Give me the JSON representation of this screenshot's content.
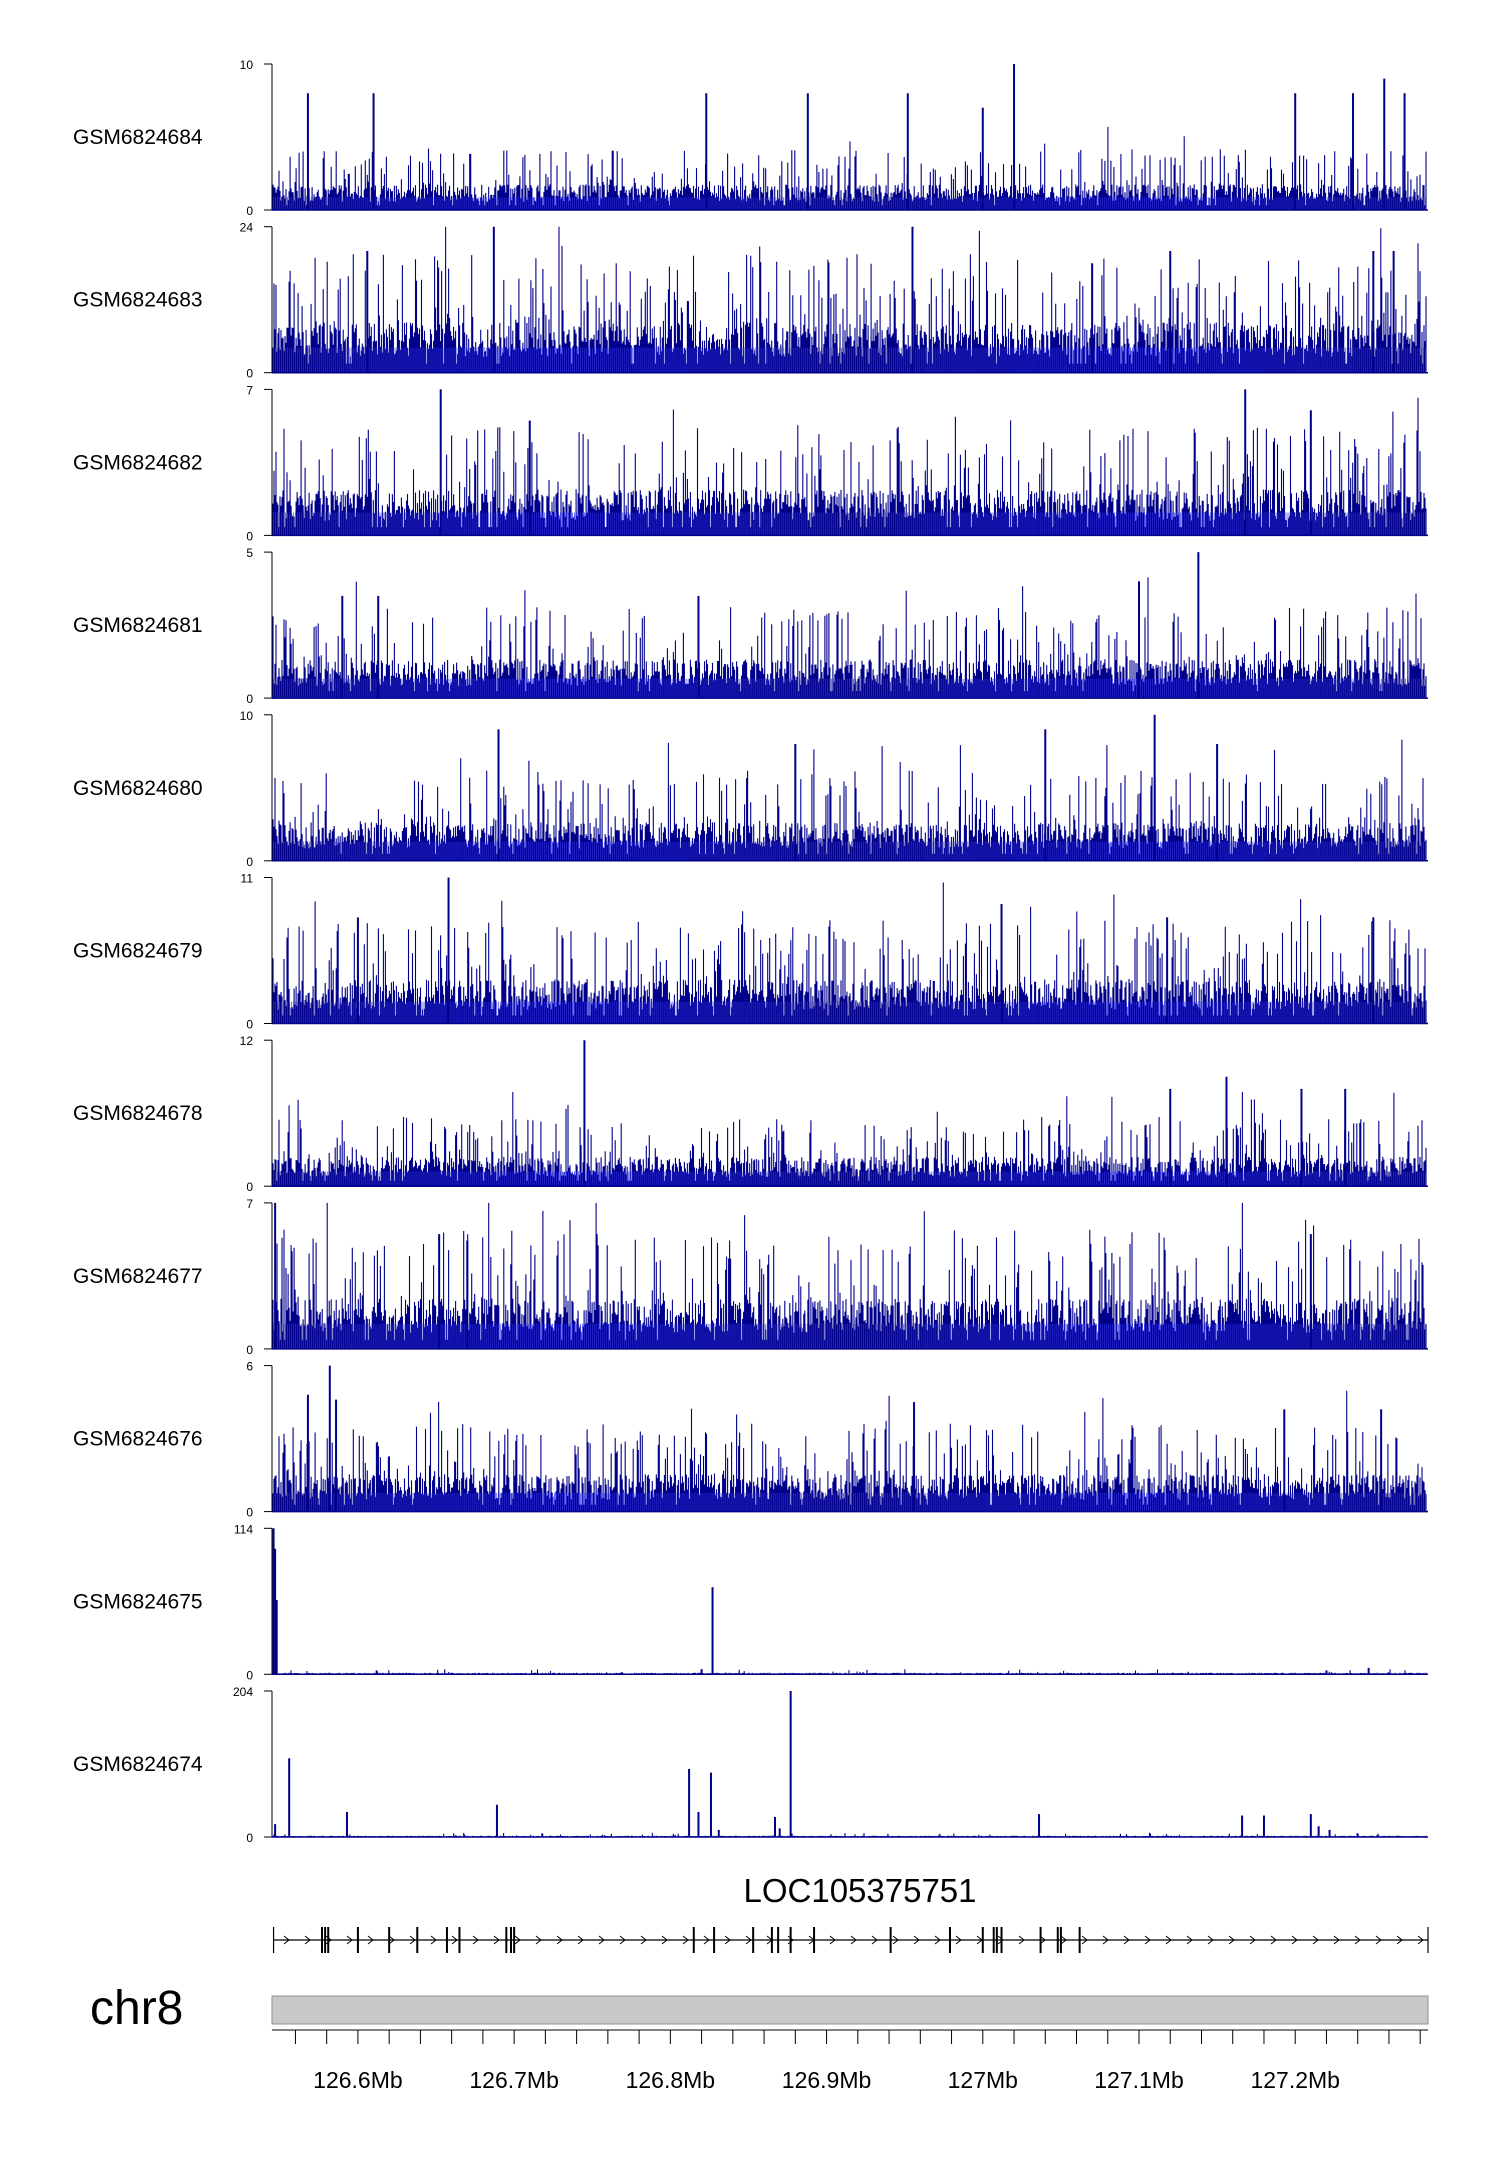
{
  "figure": {
    "tracks": [
      {
        "name": "GSM6824684",
        "ymax": "10",
        "ymin": "0"
      },
      {
        "name": "GSM6824683",
        "ymax": "24",
        "ymin": "0"
      },
      {
        "name": "GSM6824682",
        "ymax": "7",
        "ymin": "0"
      },
      {
        "name": "GSM6824681",
        "ymax": "5",
        "ymin": "0"
      },
      {
        "name": "GSM6824680",
        "ymax": "10",
        "ymin": "0"
      },
      {
        "name": "GSM6824679",
        "ymax": "11",
        "ymin": "0"
      },
      {
        "name": "GSM6824678",
        "ymax": "12",
        "ymin": "0"
      },
      {
        "name": "GSM6824677",
        "ymax": "7",
        "ymin": "0"
      },
      {
        "name": "GSM6824676",
        "ymax": "6",
        "ymin": "0"
      },
      {
        "name": "GSM6824675",
        "ymax": "114",
        "ymin": "0"
      },
      {
        "name": "GSM6824674",
        "ymax": "204",
        "ymin": "0"
      }
    ],
    "gene_label": "LOC105375751",
    "chromosome_label": "chr8",
    "axis_ticks": [
      "126.6Mb",
      "126.7Mb",
      "126.8Mb",
      "126.9Mb",
      "127Mb",
      "127.1Mb",
      "127.2Mb"
    ]
  },
  "chart_data": {
    "type": "area",
    "title": "",
    "x_unit": "Mb",
    "xlim": [
      126.545,
      127.285
    ],
    "colors": {
      "signal": "#00008B",
      "signal_light": "#3030E0",
      "gene": "#000000",
      "ideogram": "#C8C8C8",
      "ideogram_border": "#909090"
    },
    "series": [
      {
        "name": "GSM6824684",
        "ylim": [
          0,
          10
        ],
        "profile": "noise",
        "baseline": 1.6,
        "peaks": [
          {
            "x": 126.568,
            "y": 8
          },
          {
            "x": 126.61,
            "y": 8
          },
          {
            "x": 126.823,
            "y": 8
          },
          {
            "x": 126.888,
            "y": 8
          },
          {
            "x": 126.952,
            "y": 8
          },
          {
            "x": 127.0,
            "y": 7
          },
          {
            "x": 127.02,
            "y": 10
          },
          {
            "x": 127.2,
            "y": 8
          },
          {
            "x": 127.237,
            "y": 8
          },
          {
            "x": 127.257,
            "y": 9
          },
          {
            "x": 127.27,
            "y": 8
          }
        ]
      },
      {
        "name": "GSM6824683",
        "ylim": [
          0,
          24
        ],
        "profile": "noise",
        "baseline": 7.5,
        "peaks": [
          {
            "x": 126.606,
            "y": 20
          },
          {
            "x": 126.687,
            "y": 24
          },
          {
            "x": 126.955,
            "y": 24
          },
          {
            "x": 127.07,
            "y": 18
          },
          {
            "x": 127.12,
            "y": 20
          },
          {
            "x": 127.25,
            "y": 20
          },
          {
            "x": 127.263,
            "y": 20
          }
        ]
      },
      {
        "name": "GSM6824682",
        "ylim": [
          0,
          7
        ],
        "profile": "noise",
        "baseline": 2.0,
        "peaks": [
          {
            "x": 126.653,
            "y": 7
          },
          {
            "x": 127.168,
            "y": 7
          },
          {
            "x": 127.21,
            "y": 6
          },
          {
            "x": 126.71,
            "y": 5.5
          }
        ]
      },
      {
        "name": "GSM6824681",
        "ylim": [
          0,
          5
        ],
        "profile": "noise",
        "baseline": 1.2,
        "peaks": [
          {
            "x": 126.59,
            "y": 3.5
          },
          {
            "x": 126.613,
            "y": 3.5
          },
          {
            "x": 126.818,
            "y": 3.5
          },
          {
            "x": 127.138,
            "y": 5
          },
          {
            "x": 127.1,
            "y": 4
          }
        ]
      },
      {
        "name": "GSM6824680",
        "ylim": [
          0,
          10
        ],
        "profile": "noise",
        "baseline": 2.4,
        "peaks": [
          {
            "x": 126.69,
            "y": 9
          },
          {
            "x": 126.88,
            "y": 8
          },
          {
            "x": 127.04,
            "y": 9
          },
          {
            "x": 127.11,
            "y": 10
          },
          {
            "x": 127.15,
            "y": 8
          }
        ]
      },
      {
        "name": "GSM6824679",
        "ylim": [
          0,
          11
        ],
        "profile": "noise",
        "baseline": 3.0,
        "peaks": [
          {
            "x": 126.6,
            "y": 8
          },
          {
            "x": 126.658,
            "y": 11
          },
          {
            "x": 127.012,
            "y": 9
          },
          {
            "x": 127.118,
            "y": 8
          },
          {
            "x": 127.25,
            "y": 8
          }
        ]
      },
      {
        "name": "GSM6824678",
        "ylim": [
          0,
          12
        ],
        "profile": "noise",
        "baseline": 2.2,
        "peaks": [
          {
            "x": 126.745,
            "y": 12
          },
          {
            "x": 127.12,
            "y": 8
          },
          {
            "x": 127.156,
            "y": 9
          },
          {
            "x": 127.204,
            "y": 8
          },
          {
            "x": 127.232,
            "y": 8
          }
        ]
      },
      {
        "name": "GSM6824677",
        "ylim": [
          0,
          7
        ],
        "profile": "noise",
        "baseline": 2.2,
        "peaks": [
          {
            "x": 126.547,
            "y": 7
          },
          {
            "x": 126.652,
            "y": 5.5
          },
          {
            "x": 126.67,
            "y": 5.2
          },
          {
            "x": 127.21,
            "y": 5.5
          }
        ]
      },
      {
        "name": "GSM6824676",
        "ylim": [
          0,
          6
        ],
        "profile": "noise",
        "baseline": 1.4,
        "peaks": [
          {
            "x": 126.582,
            "y": 6
          },
          {
            "x": 126.568,
            "y": 4.8
          },
          {
            "x": 126.586,
            "y": 4.6
          },
          {
            "x": 126.956,
            "y": 4.5
          },
          {
            "x": 127.193,
            "y": 4.2
          },
          {
            "x": 127.255,
            "y": 4.2
          }
        ]
      },
      {
        "name": "GSM6824675",
        "ylim": [
          0,
          114
        ],
        "profile": "sparse",
        "baseline": 1.0,
        "peaks": [
          {
            "x": 126.546,
            "y": 114
          },
          {
            "x": 126.547,
            "y": 98
          },
          {
            "x": 126.548,
            "y": 58
          },
          {
            "x": 126.827,
            "y": 68
          },
          {
            "x": 126.82,
            "y": 4
          },
          {
            "x": 126.612,
            "y": 3
          },
          {
            "x": 127.22,
            "y": 3
          },
          {
            "x": 127.247,
            "y": 5
          }
        ]
      },
      {
        "name": "GSM6824674",
        "ylim": [
          0,
          204
        ],
        "profile": "sparse",
        "baseline": 1.5,
        "peaks": [
          {
            "x": 126.547,
            "y": 18
          },
          {
            "x": 126.556,
            "y": 110
          },
          {
            "x": 126.593,
            "y": 35
          },
          {
            "x": 126.689,
            "y": 45
          },
          {
            "x": 126.718,
            "y": 5
          },
          {
            "x": 126.812,
            "y": 95
          },
          {
            "x": 126.818,
            "y": 35
          },
          {
            "x": 126.826,
            "y": 90
          },
          {
            "x": 126.831,
            "y": 10
          },
          {
            "x": 126.867,
            "y": 28
          },
          {
            "x": 126.87,
            "y": 12
          },
          {
            "x": 126.877,
            "y": 204
          },
          {
            "x": 127.036,
            "y": 32
          },
          {
            "x": 127.166,
            "y": 30
          },
          {
            "x": 127.18,
            "y": 30
          },
          {
            "x": 127.21,
            "y": 32
          },
          {
            "x": 127.215,
            "y": 15
          },
          {
            "x": 127.222,
            "y": 10
          }
        ]
      }
    ],
    "gene": {
      "name": "LOC105375751",
      "strand": "+",
      "start": 126.546,
      "end": 127.285,
      "exons": [
        126.577,
        126.579,
        126.581,
        126.6,
        126.62,
        126.638,
        126.657,
        126.665,
        126.695,
        126.698,
        126.7,
        126.815,
        126.828,
        126.853,
        126.865,
        126.869,
        126.877,
        126.892,
        126.941,
        126.979,
        127.0,
        127.007,
        127.009,
        127.012,
        127.037,
        127.048,
        127.05,
        127.062
      ]
    },
    "axis": {
      "tick_values": [
        126.6,
        126.7,
        126.8,
        126.9,
        127.0,
        127.1,
        127.2
      ],
      "minor_step": 0.02
    }
  }
}
